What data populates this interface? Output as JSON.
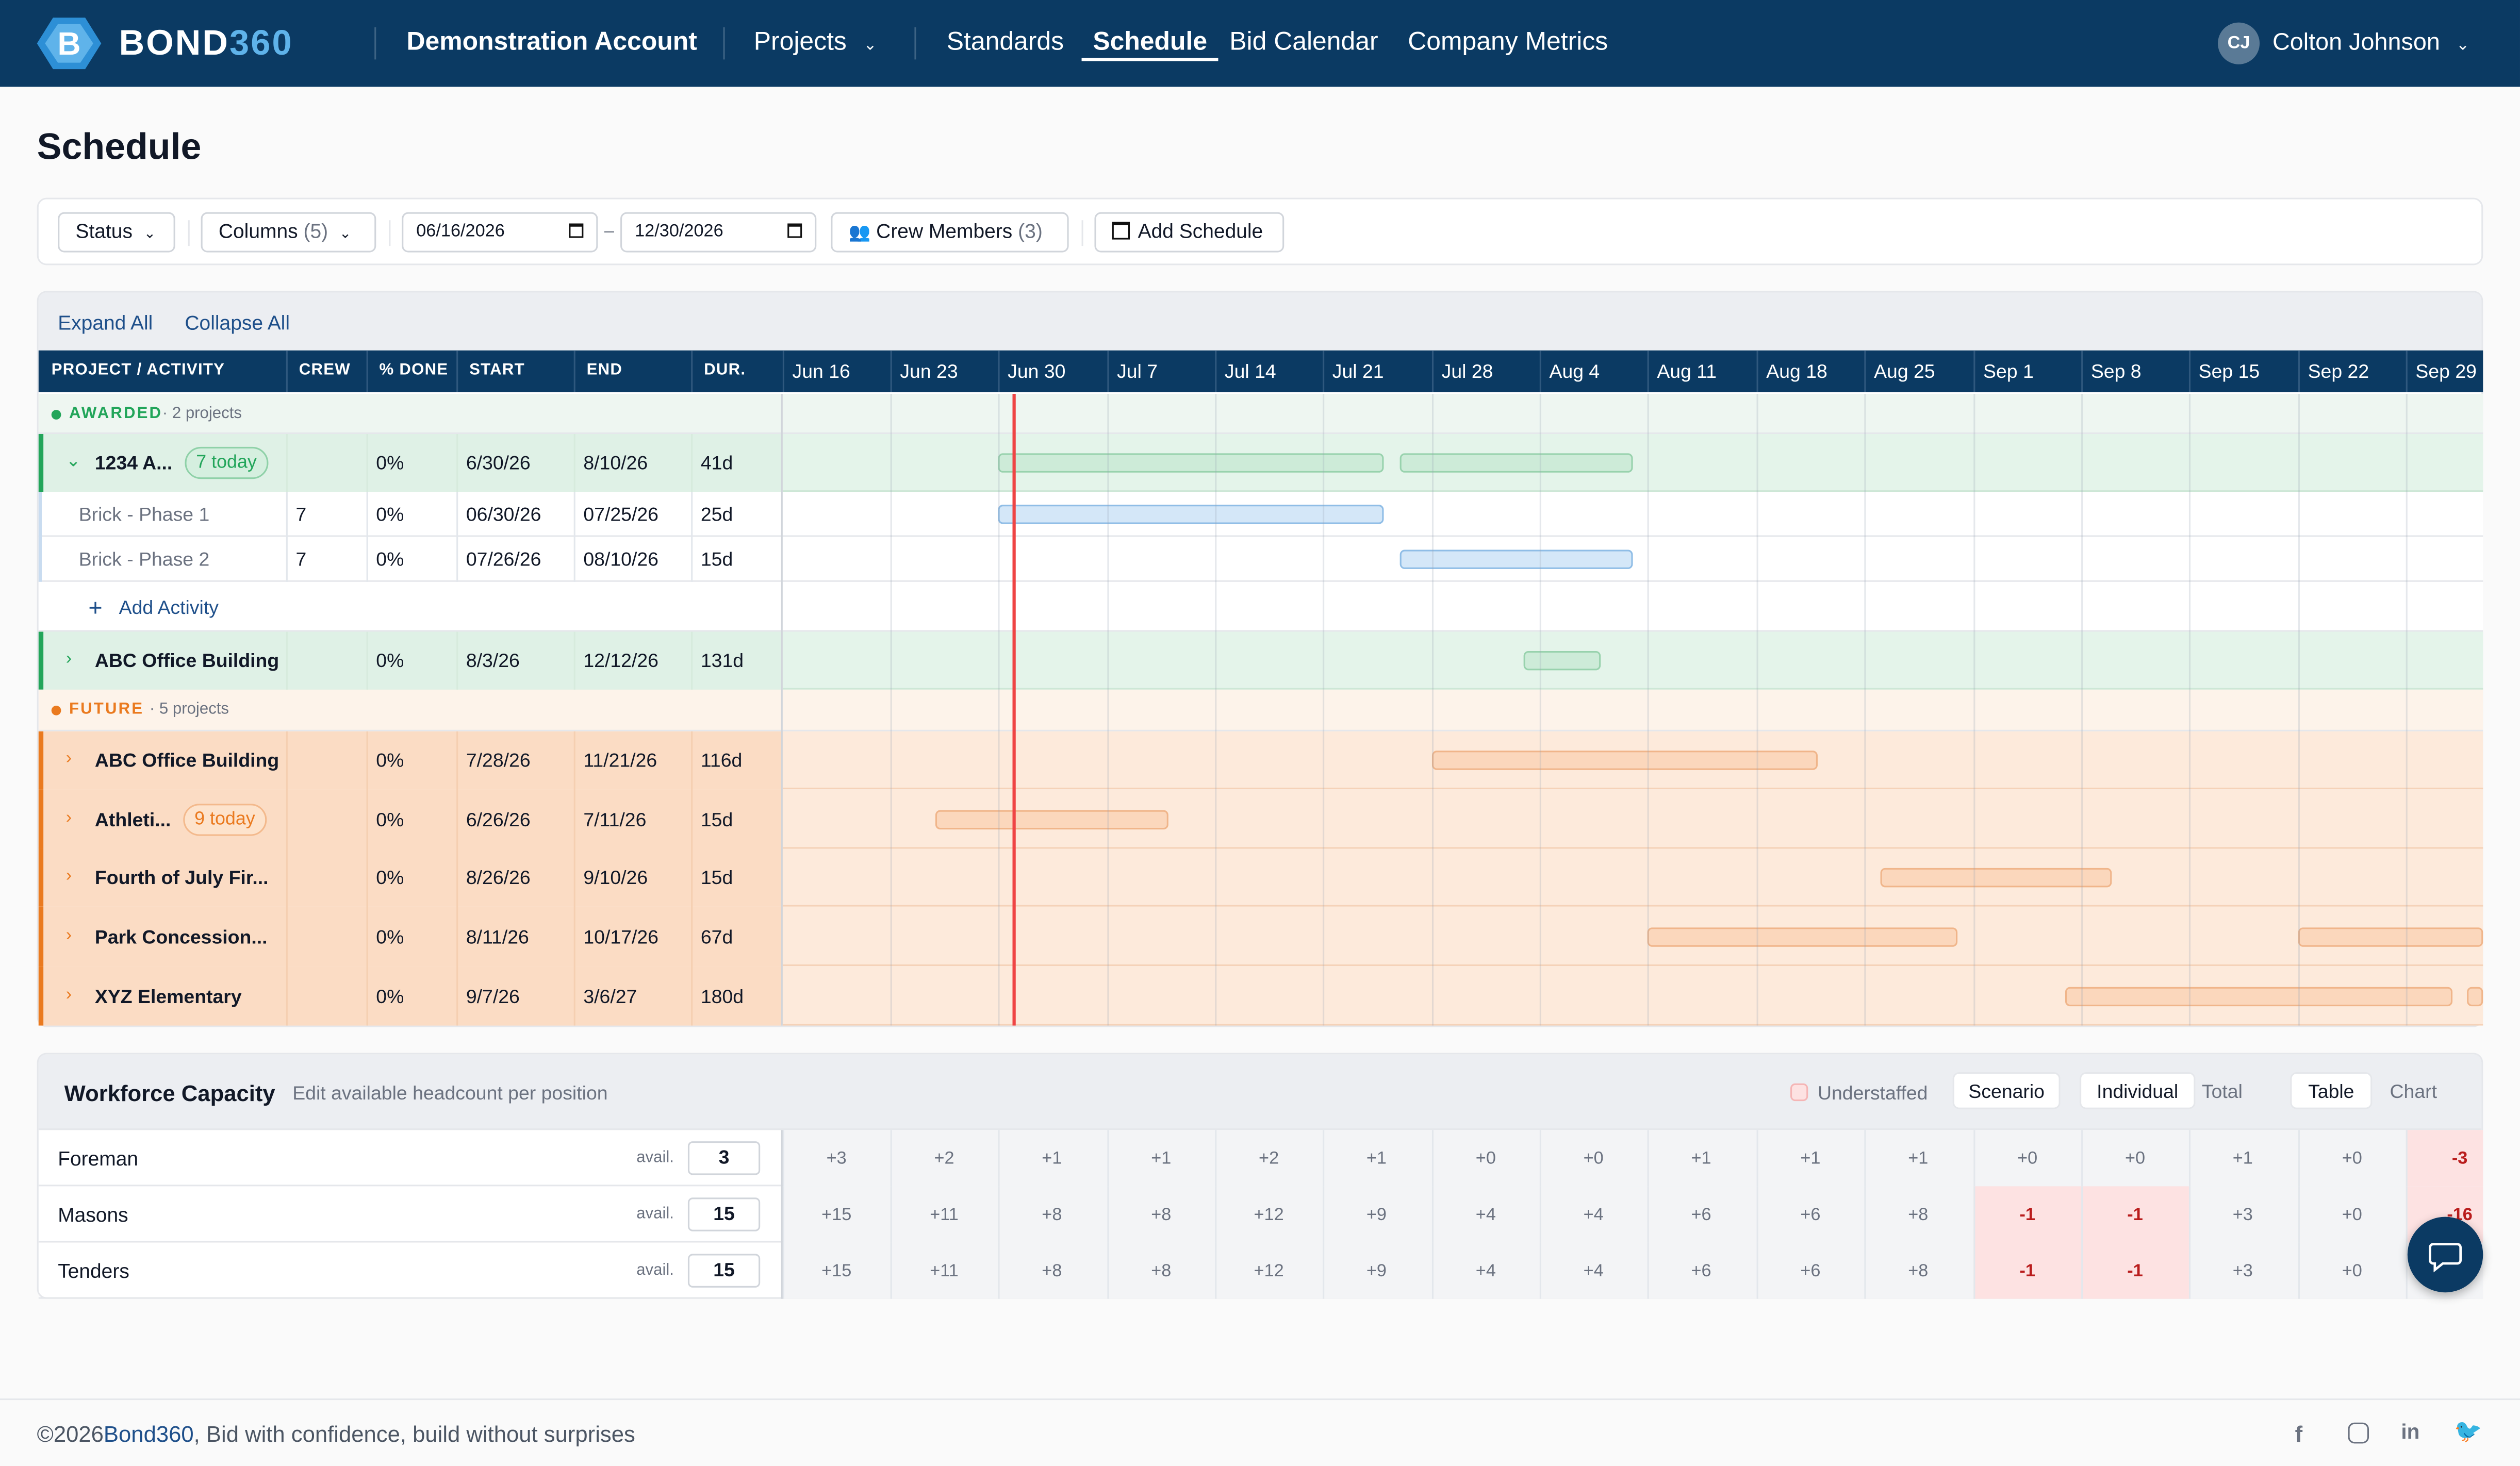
{
  "brand": {
    "name": "BOND",
    "suffix": "360",
    "logo_letter": "B"
  },
  "nav": {
    "account": "Demonstration Account",
    "projects": "Projects",
    "standards": "Standards",
    "schedule": "Schedule",
    "bid_calendar": "Bid Calendar",
    "company_metrics": "Company Metrics",
    "user_initials": "CJ",
    "user_name": "Colton Johnson"
  },
  "page_title": "Schedule",
  "toolbar": {
    "status": "Status",
    "columns": "Columns",
    "columns_count": "(5)",
    "date_from": "06/16/2026",
    "date_sep": "–",
    "date_to": "12/30/2026",
    "crew": "Crew Members",
    "crew_count": "(3)",
    "add_schedule": "Add Schedule"
  },
  "gantt": {
    "expand_all": "Expand All",
    "collapse_all": "Collapse All",
    "columns": [
      "PROJECT / ACTIVITY",
      "CREW",
      "% DONE",
      "START",
      "END",
      "DUR."
    ],
    "weeks": [
      "Jun 16",
      "Jun 23",
      "Jun 30",
      "Jul 7",
      "Jul 14",
      "Jul 21",
      "Jul 28",
      "Aug 4",
      "Aug 11",
      "Aug 18",
      "Aug 25",
      "Sep 1",
      "Sep 8",
      "Sep 15",
      "Sep 22",
      "Sep 29"
    ],
    "groups": {
      "awarded": {
        "label": "AWARDED",
        "count": "· 2 projects"
      },
      "future": {
        "label": "FUTURE",
        "count": "· 5 projects"
      }
    },
    "rows": [
      {
        "name": "1234 A...",
        "badge": "7 today",
        "crew": "",
        "done": "0%",
        "start": "6/30/26",
        "end": "8/10/26",
        "dur": "41d"
      },
      {
        "name": "Brick - Phase 1",
        "crew": "7",
        "done": "0%",
        "start": "06/30/26",
        "end": "07/25/26",
        "dur": "25d"
      },
      {
        "name": "Brick - Phase 2",
        "crew": "7",
        "done": "0%",
        "start": "07/26/26",
        "end": "08/10/26",
        "dur": "15d"
      },
      {
        "name": "ABC Office Building",
        "crew": "",
        "done": "0%",
        "start": "8/3/26",
        "end": "12/12/26",
        "dur": "131d"
      },
      {
        "name": "ABC Office Building",
        "crew": "",
        "done": "0%",
        "start": "7/28/26",
        "end": "11/21/26",
        "dur": "116d"
      },
      {
        "name": "Athleti...",
        "badge": "9 today",
        "crew": "",
        "done": "0%",
        "start": "6/26/26",
        "end": "7/11/26",
        "dur": "15d"
      },
      {
        "name": "Fourth of July Fir...",
        "crew": "",
        "done": "0%",
        "start": "8/26/26",
        "end": "9/10/26",
        "dur": "15d"
      },
      {
        "name": "Park Concession...",
        "crew": "",
        "done": "0%",
        "start": "8/11/26",
        "end": "10/17/26",
        "dur": "67d"
      },
      {
        "name": "XYZ Elementary",
        "crew": "",
        "done": "0%",
        "start": "9/7/26",
        "end": "3/6/27",
        "dur": "180d"
      }
    ],
    "add_activity": "Add Activity"
  },
  "workforce": {
    "title": "Workforce Capacity",
    "subtitle": "Edit available headcount per position",
    "legend": "Understaffed",
    "scenario": "Scenario",
    "individual": "Individual",
    "total": "Total",
    "table": "Table",
    "chart": "Chart",
    "avail_label": "avail.",
    "positions": [
      {
        "name": "Foreman",
        "avail": "3",
        "values": [
          "+3",
          "+2",
          "+1",
          "+1",
          "+2",
          "+1",
          "+0",
          "+0",
          "+1",
          "+1",
          "+1",
          "+0",
          "+0",
          "+1",
          "+0",
          "-3"
        ]
      },
      {
        "name": "Masons",
        "avail": "15",
        "values": [
          "+15",
          "+11",
          "+8",
          "+8",
          "+12",
          "+9",
          "+4",
          "+4",
          "+6",
          "+6",
          "+8",
          "-1",
          "-1",
          "+3",
          "+0",
          "-16"
        ]
      },
      {
        "name": "Tenders",
        "avail": "15",
        "values": [
          "+15",
          "+11",
          "+8",
          "+8",
          "+12",
          "+9",
          "+4",
          "+4",
          "+6",
          "+6",
          "+8",
          "-1",
          "-1",
          "+3",
          "+0",
          ""
        ]
      }
    ]
  },
  "footer": {
    "copyright": "©2026",
    "brand": "Bond360",
    "tagline": ", Bid with confidence, build without surprises"
  },
  "colors": {
    "nav": "#0b3a63",
    "accent": "#1e66b5",
    "awarded": "#22a55a",
    "future": "#ea7a1f",
    "today_line": "#ef4444"
  }
}
